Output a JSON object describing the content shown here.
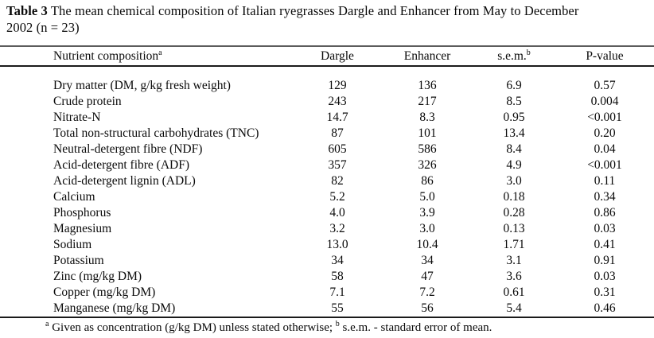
{
  "caption": {
    "label": "Table 3",
    "line1": "The mean chemical composition of Italian ryegrasses Dargle and Enhancer from May to December",
    "line2": "2002 (n = 23)"
  },
  "table": {
    "columns": [
      {
        "label": "Nutrient composition",
        "sup": "a"
      },
      {
        "label": "Dargle"
      },
      {
        "label": "Enhancer"
      },
      {
        "label": "s.e.m.",
        "sup": "b"
      },
      {
        "label": "P-value"
      }
    ],
    "rows": [
      {
        "nutrient": "Dry matter (DM, g/kg fresh weight)",
        "dargle": "129",
        "enhancer": "136",
        "sem": "6.9",
        "p_value": "0.57"
      },
      {
        "nutrient": "Crude protein",
        "dargle": "243",
        "enhancer": "217",
        "sem": "8.5",
        "p_value": "0.004"
      },
      {
        "nutrient": "Nitrate-N",
        "dargle": "14.7",
        "enhancer": "8.3",
        "sem": "0.95",
        "p_value": "<0.001"
      },
      {
        "nutrient": "Total non-structural carbohydrates (TNC)",
        "dargle": "87",
        "enhancer": "101",
        "sem": "13.4",
        "p_value": "0.20"
      },
      {
        "nutrient": "Neutral-detergent fibre (NDF)",
        "dargle": "605",
        "enhancer": "586",
        "sem": "8.4",
        "p_value": "0.04"
      },
      {
        "nutrient": "Acid-detergent fibre (ADF)",
        "dargle": "357",
        "enhancer": "326",
        "sem": "4.9",
        "p_value": "<0.001"
      },
      {
        "nutrient": "Acid-detergent lignin (ADL)",
        "dargle": "82",
        "enhancer": "86",
        "sem": "3.0",
        "p_value": "0.11"
      },
      {
        "nutrient": "Calcium",
        "dargle": "5.2",
        "enhancer": "5.0",
        "sem": "0.18",
        "p_value": "0.34"
      },
      {
        "nutrient": "Phosphorus",
        "dargle": "4.0",
        "enhancer": "3.9",
        "sem": "0.28",
        "p_value": "0.86"
      },
      {
        "nutrient": "Magnesium",
        "dargle": "3.2",
        "enhancer": "3.0",
        "sem": "0.13",
        "p_value": "0.03"
      },
      {
        "nutrient": "Sodium",
        "dargle": "13.0",
        "enhancer": "10.4",
        "sem": "1.71",
        "p_value": "0.41"
      },
      {
        "nutrient": "Potassium",
        "dargle": "34",
        "enhancer": "34",
        "sem": "3.1",
        "p_value": "0.91"
      },
      {
        "nutrient": "Zinc (mg/kg DM)",
        "dargle": "58",
        "enhancer": "47",
        "sem": "3.6",
        "p_value": "0.03"
      },
      {
        "nutrient": "Copper (mg/kg DM)",
        "dargle": "7.1",
        "enhancer": "7.2",
        "sem": "0.61",
        "p_value": "0.31"
      },
      {
        "nutrient": "Manganese (mg/kg DM)",
        "dargle": "55",
        "enhancer": "56",
        "sem": "5.4",
        "p_value": "0.46"
      }
    ]
  },
  "footnote": {
    "sup_a": "a",
    "text_a": " Given as concentration (g/kg DM) unless stated otherwise; ",
    "sup_b": "b",
    "text_b": " s.e.m. - standard error of mean."
  }
}
